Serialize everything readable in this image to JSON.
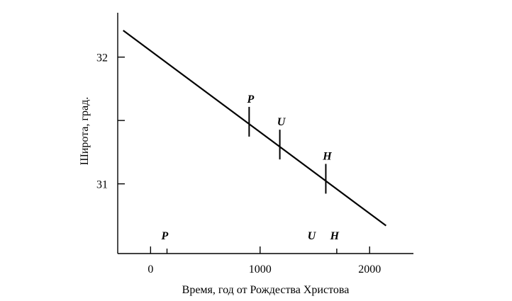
{
  "chart_data": {
    "type": "line",
    "xlabel": "Время, год от Рождества Христова",
    "ylabel": "Широта, град.",
    "xlim": [
      -300,
      2400
    ],
    "ylim": [
      30.45,
      32.35
    ],
    "xticks": [
      0,
      1000,
      2000
    ],
    "xtick_labels": [
      "0",
      "1000",
      "2000"
    ],
    "yticks": [
      31,
      31.5,
      32
    ],
    "ytick_labels": [
      "31",
      "",
      "32"
    ],
    "minor_xticks": [
      150,
      1700
    ],
    "grid": false,
    "legend": "none",
    "series": [
      {
        "x": [
          -250,
          2150
        ],
        "y": [
          32.21,
          30.67
        ]
      }
    ],
    "markers": [
      {
        "label": "P",
        "x": 900,
        "y": 31.49
      },
      {
        "label": "U",
        "x": 1180,
        "y": 31.31
      },
      {
        "label": "H",
        "x": 1600,
        "y": 31.04
      }
    ],
    "bottom_labels": [
      {
        "label": "P",
        "x": 130
      },
      {
        "label": "U",
        "x": 1470
      },
      {
        "label": "H",
        "x": 1680
      }
    ]
  }
}
